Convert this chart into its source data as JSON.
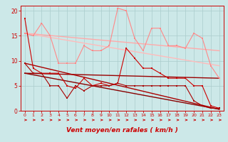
{
  "background_color": "#cce8e8",
  "grid_color": "#aacccc",
  "xlabel": "Vent moyen/en rafales ( km/h )",
  "xlim": [
    -0.5,
    23.5
  ],
  "ylim": [
    0,
    21
  ],
  "yticks": [
    0,
    5,
    10,
    15,
    20
  ],
  "xticks": [
    0,
    1,
    2,
    3,
    4,
    5,
    6,
    7,
    8,
    9,
    10,
    11,
    12,
    13,
    14,
    15,
    16,
    17,
    18,
    19,
    20,
    21,
    22,
    23
  ],
  "lines": [
    {
      "x": [
        0,
        1,
        2,
        3,
        4,
        5,
        6,
        7,
        8,
        9,
        10,
        11,
        12,
        13,
        14,
        15,
        16,
        17,
        18,
        19,
        20,
        21,
        22,
        23
      ],
      "y": [
        18.5,
        8.5,
        7.5,
        7.5,
        7.5,
        5.0,
        4.5,
        6.5,
        5.0,
        5.5,
        5.0,
        5.5,
        12.5,
        10.5,
        8.5,
        8.5,
        7.5,
        6.5,
        6.5,
        6.5,
        5.0,
        5.0,
        1.0,
        0.5
      ],
      "color": "#cc0000",
      "lw": 0.8,
      "marker": "s",
      "ms": 1.8,
      "zorder": 5
    },
    {
      "x": [
        0,
        1,
        2,
        3,
        4,
        5,
        6,
        7,
        8,
        9,
        10,
        11,
        12,
        13,
        14,
        15,
        16,
        17,
        18,
        19,
        20,
        21,
        22,
        23
      ],
      "y": [
        9.5,
        7.5,
        7.5,
        5.0,
        5.0,
        2.5,
        5.0,
        4.0,
        5.0,
        5.0,
        5.0,
        5.5,
        5.0,
        5.0,
        5.0,
        5.0,
        5.0,
        5.0,
        5.0,
        5.0,
        2.0,
        1.0,
        0.5,
        0.5
      ],
      "color": "#aa0000",
      "lw": 0.8,
      "marker": "s",
      "ms": 1.8,
      "zorder": 5
    },
    {
      "x": [
        0,
        23
      ],
      "y": [
        7.5,
        0.3
      ],
      "color": "#880000",
      "lw": 1.0,
      "marker": null,
      "ms": 0,
      "zorder": 3
    },
    {
      "x": [
        0,
        23
      ],
      "y": [
        7.5,
        6.5
      ],
      "color": "#990000",
      "lw": 1.0,
      "marker": null,
      "ms": 0,
      "zorder": 3
    },
    {
      "x": [
        0,
        23
      ],
      "y": [
        9.5,
        0.3
      ],
      "color": "#aa0000",
      "lw": 1.0,
      "marker": null,
      "ms": 0,
      "zorder": 3
    },
    {
      "x": [
        0,
        1,
        2,
        3,
        4,
        5,
        6,
        7,
        8,
        9,
        10,
        11,
        12,
        13,
        14,
        15,
        16,
        17,
        18,
        19,
        20,
        21,
        22,
        23
      ],
      "y": [
        15.5,
        15.0,
        17.5,
        15.0,
        9.5,
        9.5,
        9.5,
        13.0,
        12.0,
        12.0,
        13.0,
        20.5,
        20.0,
        14.5,
        12.0,
        16.5,
        16.5,
        13.0,
        13.0,
        12.5,
        15.5,
        14.5,
        9.0,
        6.5
      ],
      "color": "#ff8888",
      "lw": 0.8,
      "marker": "s",
      "ms": 1.8,
      "zorder": 4
    },
    {
      "x": [
        0,
        23
      ],
      "y": [
        15.5,
        12.0
      ],
      "color": "#ffaaaa",
      "lw": 1.0,
      "marker": null,
      "ms": 0,
      "zorder": 2
    },
    {
      "x": [
        0,
        23
      ],
      "y": [
        15.5,
        9.0
      ],
      "color": "#ffbbbb",
      "lw": 1.0,
      "marker": null,
      "ms": 0,
      "zorder": 2
    }
  ],
  "arrow_color": "#cc0000",
  "xlabel_color": "#cc0000",
  "tick_color": "#cc0000",
  "axis_color": "#cc0000",
  "xlabel_fontsize": 6.5,
  "tick_fontsize_x": 4.5,
  "tick_fontsize_y": 5.5
}
